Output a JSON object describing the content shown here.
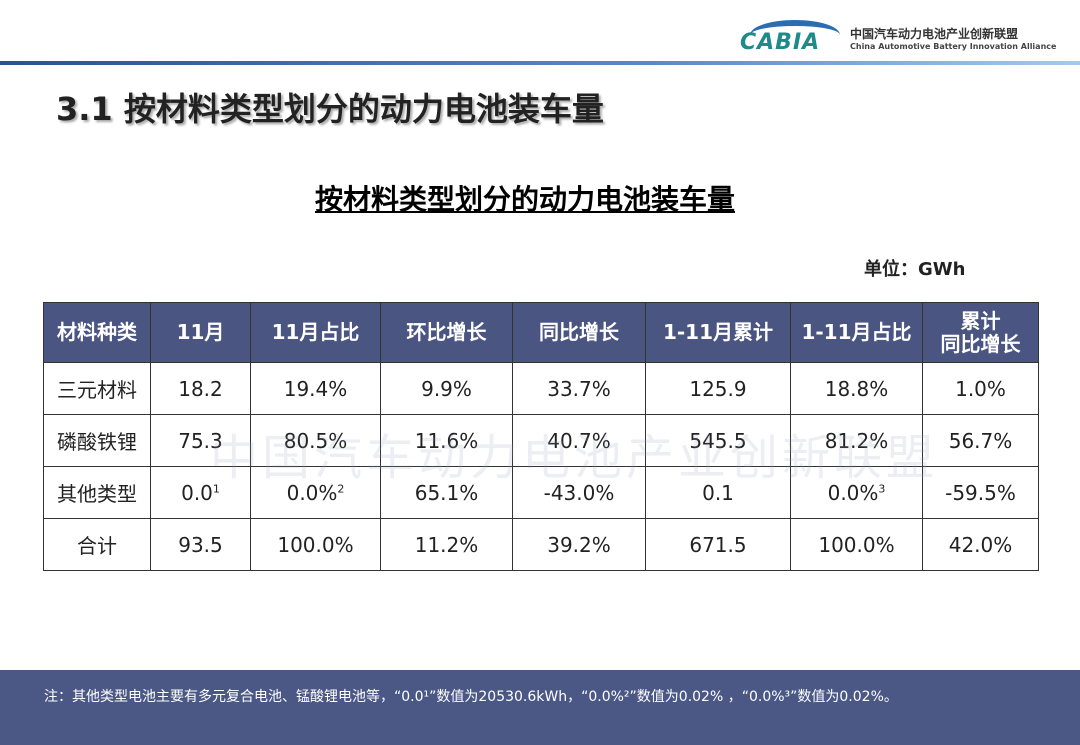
{
  "header": {
    "logo_text": "CABIA",
    "org_cn": "中国汽车动力电池产业创新联盟",
    "org_en": "China Automotive Battery Innovation Alliance"
  },
  "page_title": "3.1  按材料类型划分的动力电池装车量",
  "table_title": "按材料类型划分的动力电池装车量",
  "unit": "单位：GWh",
  "watermark": "中国汽车动力电池产业创新联盟",
  "table": {
    "headers": [
      "材料种类",
      "11月",
      "11月占比",
      "环比增长",
      "同比增长",
      "1-11月累计",
      "1-11月占比",
      "累计同比增长"
    ],
    "rows": [
      {
        "cells": [
          "三元材料",
          "18.2",
          "19.4%",
          "9.9%",
          "33.7%",
          "125.9",
          "18.8%",
          "1.0%"
        ]
      },
      {
        "cells": [
          "磷酸铁锂",
          "75.3",
          "80.5%",
          "11.6%",
          "40.7%",
          "545.5",
          "81.2%",
          "56.7%"
        ]
      },
      {
        "cells": [
          "其他类型",
          "0.0",
          "0.0%",
          "65.1%",
          "-43.0%",
          "0.1",
          "0.0%",
          "-59.5%"
        ],
        "sups": {
          "1": "1",
          "2": "2",
          "6": "3"
        }
      },
      {
        "cells": [
          "合计",
          "93.5",
          "100.0%",
          "11.2%",
          "39.2%",
          "671.5",
          "100.0%",
          "42.0%"
        ]
      }
    ]
  },
  "footer_note": "注：其他类型电池主要有多元复合电池、锰酸锂电池等，“0.0¹”数值为20530.6kWh，“0.0%²”数值为0.02% ，“0.0%³”数值为0.02%。"
}
